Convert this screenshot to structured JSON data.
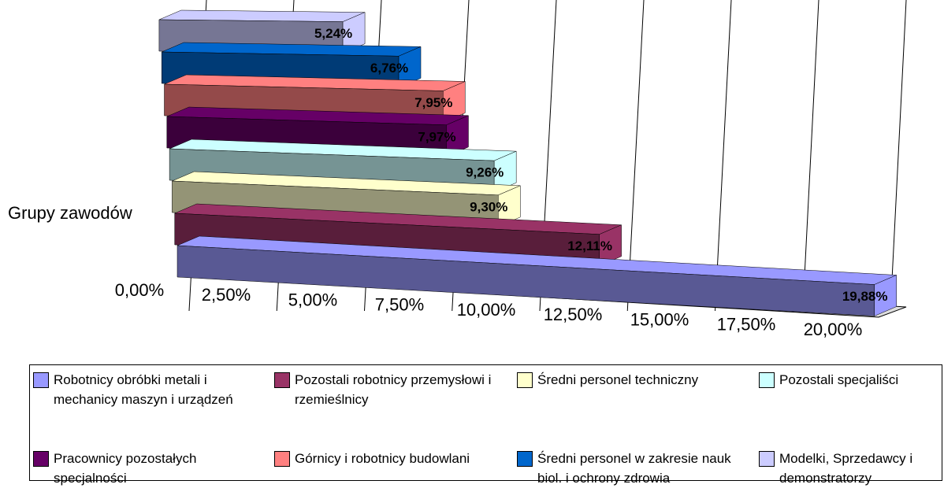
{
  "chart_data": {
    "type": "bar",
    "orientation": "horizontal",
    "y_label": "Grupy zawodów",
    "xlim": [
      0,
      20
    ],
    "xticks": [
      {
        "value": 0,
        "label": "0,00%"
      },
      {
        "value": 2.5,
        "label": "2,50%"
      },
      {
        "value": 5,
        "label": "5,00%"
      },
      {
        "value": 7.5,
        "label": "7,50%"
      },
      {
        "value": 10,
        "label": "10,00%"
      },
      {
        "value": 12.5,
        "label": "12,50%"
      },
      {
        "value": 15,
        "label": "15,00%"
      },
      {
        "value": 17.5,
        "label": "17,50%"
      },
      {
        "value": 20,
        "label": "20,00%"
      }
    ],
    "grid": true,
    "series": [
      {
        "name": "Robotnicy obróbki metali i mechanicy maszyn i urządzeń",
        "color": "#9999ff",
        "values": [
          19.88
        ],
        "value_labels": [
          "19,88%"
        ]
      },
      {
        "name": "Pozostali robotnicy przemysłowi i rzemieślnicy",
        "color": "#993366",
        "values": [
          12.11
        ],
        "value_labels": [
          "12,11%"
        ]
      },
      {
        "name": "Średni personel techniczny",
        "color": "#ffffcc",
        "values": [
          9.3
        ],
        "value_labels": [
          "9,30%"
        ]
      },
      {
        "name": "Pozostali specjaliści",
        "color": "#ccffff",
        "values": [
          9.26
        ],
        "value_labels": [
          "9,26%"
        ]
      },
      {
        "name": "Pracownicy pozostałych specjalności",
        "color": "#660066",
        "values": [
          7.97
        ],
        "value_labels": [
          "7,97%"
        ]
      },
      {
        "name": "Górnicy i robotnicy budowlani",
        "color": "#ff8080",
        "values": [
          7.95
        ],
        "value_labels": [
          "7,95%"
        ]
      },
      {
        "name": "Średni personel w zakresie nauk biol. i ochrony zdrowia",
        "color": "#0066cc",
        "values": [
          6.76
        ],
        "value_labels": [
          "6,76%"
        ]
      },
      {
        "name": "Modelki, Sprzedawcy i demonstratorzy",
        "color": "#ccccff",
        "values": [
          5.24
        ],
        "value_labels": [
          "5,24%"
        ]
      }
    ]
  }
}
